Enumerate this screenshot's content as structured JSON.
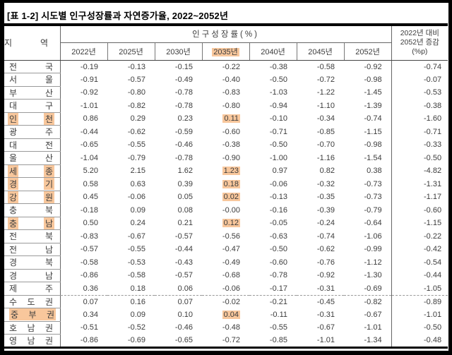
{
  "title": "[표 1-2] 시도별 인구성장률과 자연증가율, 2022~2052년",
  "colors": {
    "highlight": "#f8c79c",
    "text": "#3c3c3c",
    "frame": "#000000"
  },
  "header": {
    "region_label": "지 역",
    "region_chars": [
      "지",
      "역"
    ],
    "group_label": "인구성장률(%)",
    "years": [
      "2022년",
      "2025년",
      "2030년",
      "2035년",
      "2040년",
      "2045년",
      "2052년"
    ],
    "highlighted_year": "2035년",
    "highlighted_year_index": 3,
    "change_line1": "2022년 대비",
    "change_line2": "2052년 증감",
    "change_line3": "(%p)"
  },
  "chart_data": {
    "type": "table",
    "title": "[표 1-2] 시도별 인구성장률과 자연증가율, 2022~2052년",
    "columns": [
      "지역",
      "2022년",
      "2025년",
      "2030년",
      "2035년",
      "2040년",
      "2045년",
      "2052년",
      "2022년 대비 2052년 증감(%p)"
    ]
  },
  "table": {
    "divider_before_row": 18,
    "rows": [
      {
        "region": "전국",
        "chars": [
          "전",
          "국"
        ],
        "hl_chars": false,
        "hl_full": false,
        "hl_col": -1,
        "values": [
          "-0.19",
          "-0.13",
          "-0.15",
          "-0.22",
          "-0.38",
          "-0.58",
          "-0.92",
          "-0.74"
        ]
      },
      {
        "region": "서울",
        "chars": [
          "서",
          "울"
        ],
        "hl_chars": false,
        "hl_full": false,
        "hl_col": -1,
        "values": [
          "-0.91",
          "-0.57",
          "-0.49",
          "-0.40",
          "-0.50",
          "-0.72",
          "-0.98",
          "-0.07"
        ]
      },
      {
        "region": "부산",
        "chars": [
          "부",
          "산"
        ],
        "hl_chars": false,
        "hl_full": false,
        "hl_col": -1,
        "values": [
          "-0.92",
          "-0.80",
          "-0.78",
          "-0.83",
          "-1.03",
          "-1.22",
          "-1.45",
          "-0.53"
        ]
      },
      {
        "region": "대구",
        "chars": [
          "대",
          "구"
        ],
        "hl_chars": false,
        "hl_full": false,
        "hl_col": -1,
        "values": [
          "-1.01",
          "-0.82",
          "-0.78",
          "-0.80",
          "-0.94",
          "-1.10",
          "-1.39",
          "-0.38"
        ]
      },
      {
        "region": "인천",
        "chars": [
          "인",
          "천"
        ],
        "hl_chars": true,
        "hl_full": false,
        "hl_col": 3,
        "values": [
          "0.86",
          "0.29",
          "0.23",
          "0.11",
          "-0.10",
          "-0.34",
          "-0.74",
          "-1.60"
        ]
      },
      {
        "region": "광주",
        "chars": [
          "광",
          "주"
        ],
        "hl_chars": false,
        "hl_full": false,
        "hl_col": -1,
        "values": [
          "-0.44",
          "-0.62",
          "-0.59",
          "-0.60",
          "-0.71",
          "-0.85",
          "-1.15",
          "-0.71"
        ]
      },
      {
        "region": "대전",
        "chars": [
          "대",
          "전"
        ],
        "hl_chars": false,
        "hl_full": false,
        "hl_col": -1,
        "values": [
          "-0.65",
          "-0.55",
          "-0.46",
          "-0.38",
          "-0.50",
          "-0.70",
          "-0.98",
          "-0.33"
        ]
      },
      {
        "region": "울산",
        "chars": [
          "울",
          "산"
        ],
        "hl_chars": false,
        "hl_full": false,
        "hl_col": -1,
        "values": [
          "-1.04",
          "-0.79",
          "-0.78",
          "-0.90",
          "-1.00",
          "-1.16",
          "-1.54",
          "-0.50"
        ]
      },
      {
        "region": "세종",
        "chars": [
          "세",
          "종"
        ],
        "hl_chars": true,
        "hl_full": false,
        "hl_col": 3,
        "values": [
          "5.20",
          "2.15",
          "1.62",
          "1.23",
          "0.97",
          "0.82",
          "0.38",
          "-4.82"
        ]
      },
      {
        "region": "경기",
        "chars": [
          "경",
          "기"
        ],
        "hl_chars": true,
        "hl_full": false,
        "hl_col": 3,
        "values": [
          "0.58",
          "0.63",
          "0.39",
          "0.18",
          "-0.06",
          "-0.32",
          "-0.73",
          "-1.31"
        ]
      },
      {
        "region": "강원",
        "chars": [
          "강",
          "원"
        ],
        "hl_chars": true,
        "hl_full": false,
        "hl_col": 3,
        "values": [
          "0.45",
          "-0.06",
          "0.05",
          "0.02",
          "-0.13",
          "-0.35",
          "-0.73",
          "-1.17"
        ]
      },
      {
        "region": "충북",
        "chars": [
          "충",
          "북"
        ],
        "hl_chars": false,
        "hl_full": false,
        "hl_col": -1,
        "values": [
          "-0.18",
          "0.09",
          "0.08",
          "-0.00",
          "-0.16",
          "-0.39",
          "-0.79",
          "-0.60"
        ]
      },
      {
        "region": "충남",
        "chars": [
          "충",
          "남"
        ],
        "hl_chars": true,
        "hl_full": false,
        "hl_col": 3,
        "values": [
          "0.50",
          "0.24",
          "0.21",
          "0.12",
          "-0.05",
          "-0.24",
          "-0.64",
          "-1.15"
        ]
      },
      {
        "region": "전북",
        "chars": [
          "전",
          "북"
        ],
        "hl_chars": false,
        "hl_full": false,
        "hl_col": -1,
        "values": [
          "-0.83",
          "-0.67",
          "-0.57",
          "-0.56",
          "-0.63",
          "-0.74",
          "-1.06",
          "-0.22"
        ]
      },
      {
        "region": "전남",
        "chars": [
          "전",
          "남"
        ],
        "hl_chars": false,
        "hl_full": false,
        "hl_col": -1,
        "values": [
          "-0.57",
          "-0.55",
          "-0.44",
          "-0.47",
          "-0.50",
          "-0.62",
          "-0.99",
          "-0.42"
        ]
      },
      {
        "region": "경북",
        "chars": [
          "경",
          "북"
        ],
        "hl_chars": false,
        "hl_full": false,
        "hl_col": -1,
        "values": [
          "-0.58",
          "-0.53",
          "-0.43",
          "-0.49",
          "-0.60",
          "-0.76",
          "-1.12",
          "-0.54"
        ]
      },
      {
        "region": "경남",
        "chars": [
          "경",
          "남"
        ],
        "hl_chars": false,
        "hl_full": false,
        "hl_col": -1,
        "values": [
          "-0.86",
          "-0.58",
          "-0.57",
          "-0.68",
          "-0.78",
          "-0.92",
          "-1.30",
          "-0.44"
        ]
      },
      {
        "region": "제주",
        "chars": [
          "제",
          "주"
        ],
        "hl_chars": false,
        "hl_full": false,
        "hl_col": -1,
        "values": [
          "0.36",
          "0.18",
          "0.06",
          "-0.06",
          "-0.17",
          "-0.31",
          "-0.69",
          "-1.05"
        ]
      },
      {
        "region": "수도권",
        "chars": [
          "수",
          "도",
          "권"
        ],
        "hl_chars": false,
        "hl_full": false,
        "hl_col": -1,
        "values": [
          "0.07",
          "0.16",
          "0.07",
          "-0.02",
          "-0.21",
          "-0.45",
          "-0.82",
          "-0.89"
        ]
      },
      {
        "region": "중부권",
        "chars": [
          "중",
          "부",
          "권"
        ],
        "hl_chars": false,
        "hl_full": true,
        "hl_col": 3,
        "values": [
          "0.34",
          "0.09",
          "0.10",
          "0.04",
          "-0.11",
          "-0.31",
          "-0.67",
          "-1.01"
        ]
      },
      {
        "region": "호남권",
        "chars": [
          "호",
          "남",
          "권"
        ],
        "hl_chars": false,
        "hl_full": false,
        "hl_col": -1,
        "values": [
          "-0.51",
          "-0.52",
          "-0.46",
          "-0.48",
          "-0.55",
          "-0.67",
          "-1.01",
          "-0.50"
        ]
      },
      {
        "region": "영남권",
        "chars": [
          "영",
          "남",
          "권"
        ],
        "hl_chars": false,
        "hl_full": false,
        "hl_col": -1,
        "values": [
          "-0.86",
          "-0.69",
          "-0.65",
          "-0.72",
          "-0.85",
          "-1.01",
          "-1.34",
          "-0.48"
        ]
      }
    ]
  }
}
